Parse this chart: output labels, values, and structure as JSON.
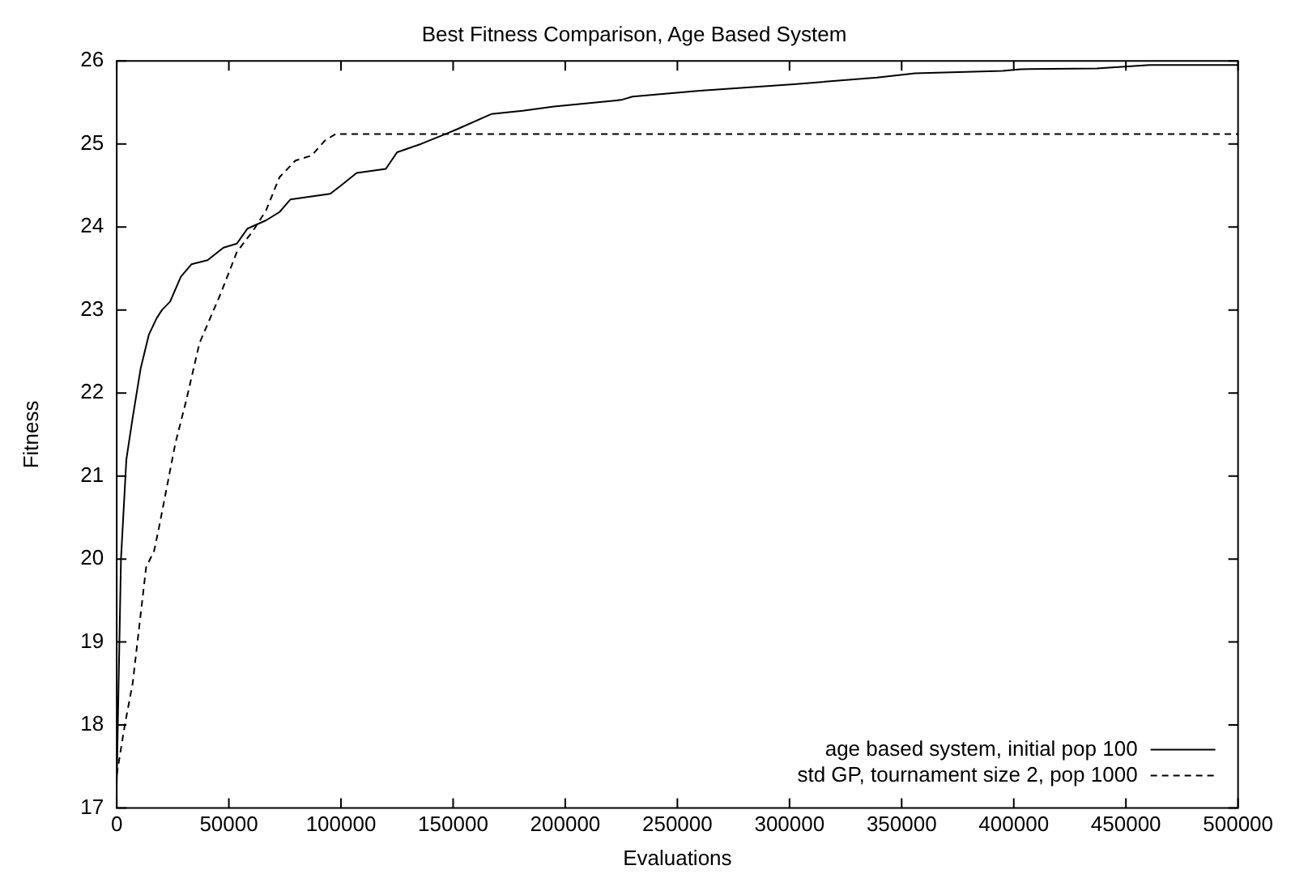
{
  "chart_data": {
    "type": "line",
    "title": "Best Fitness Comparison, Age Based System",
    "xlabel": "Evaluations",
    "ylabel": "Fitness",
    "xlim": [
      0,
      500000
    ],
    "xticks": [
      0,
      50000,
      100000,
      150000,
      200000,
      250000,
      300000,
      350000,
      400000,
      450000,
      500000
    ],
    "ylim": [
      17,
      26
    ],
    "yticks": [
      17,
      18,
      19,
      20,
      21,
      22,
      23,
      24,
      25,
      26
    ],
    "grid": false,
    "legend": "bottom right",
    "marker": "none",
    "series": [
      {
        "name": "age based system, initial pop 100",
        "color": "#000000",
        "line_style": "solid",
        "x": [
          0,
          1900,
          4300,
          7100,
          10700,
          14300,
          17800,
          20200,
          23800,
          28600,
          33300,
          40500,
          47600,
          53600,
          58300,
          66600,
          72600,
          77400,
          95200,
          100000,
          107000,
          120000,
          125000,
          135700,
          147600,
          152000,
          167000,
          181000,
          195000,
          225000,
          230000,
          260000,
          302000,
          339000,
          356000,
          395000,
          403000,
          437000,
          460600,
          486000,
          500000
        ],
        "values": [
          17.3,
          20.0,
          21.2,
          21.7,
          22.3,
          22.7,
          22.9,
          23.0,
          23.1,
          23.4,
          23.55,
          23.6,
          23.75,
          23.8,
          23.98,
          24.08,
          24.18,
          24.33,
          24.4,
          24.5,
          24.65,
          24.7,
          24.9,
          25.0,
          25.13,
          25.18,
          25.36,
          25.4,
          25.45,
          25.53,
          25.57,
          25.64,
          25.72,
          25.8,
          25.85,
          25.88,
          25.9,
          25.91,
          25.95,
          25.95,
          25.95
        ]
      },
      {
        "name": "std GP, tournament size 2, pop 1000",
        "color": "#000000",
        "line_style": "dashed",
        "x": [
          0,
          3600,
          7100,
          13100,
          16700,
          19000,
          26200,
          30900,
          36900,
          46400,
          53600,
          60700,
          66600,
          72600,
          79700,
          86900,
          92800,
          97600,
          500000
        ],
        "values": [
          17.4,
          18.0,
          18.5,
          19.9,
          20.1,
          20.4,
          21.4,
          21.9,
          22.6,
          23.2,
          23.7,
          23.95,
          24.2,
          24.6,
          24.8,
          24.86,
          25.04,
          25.12,
          25.12
        ]
      }
    ]
  }
}
